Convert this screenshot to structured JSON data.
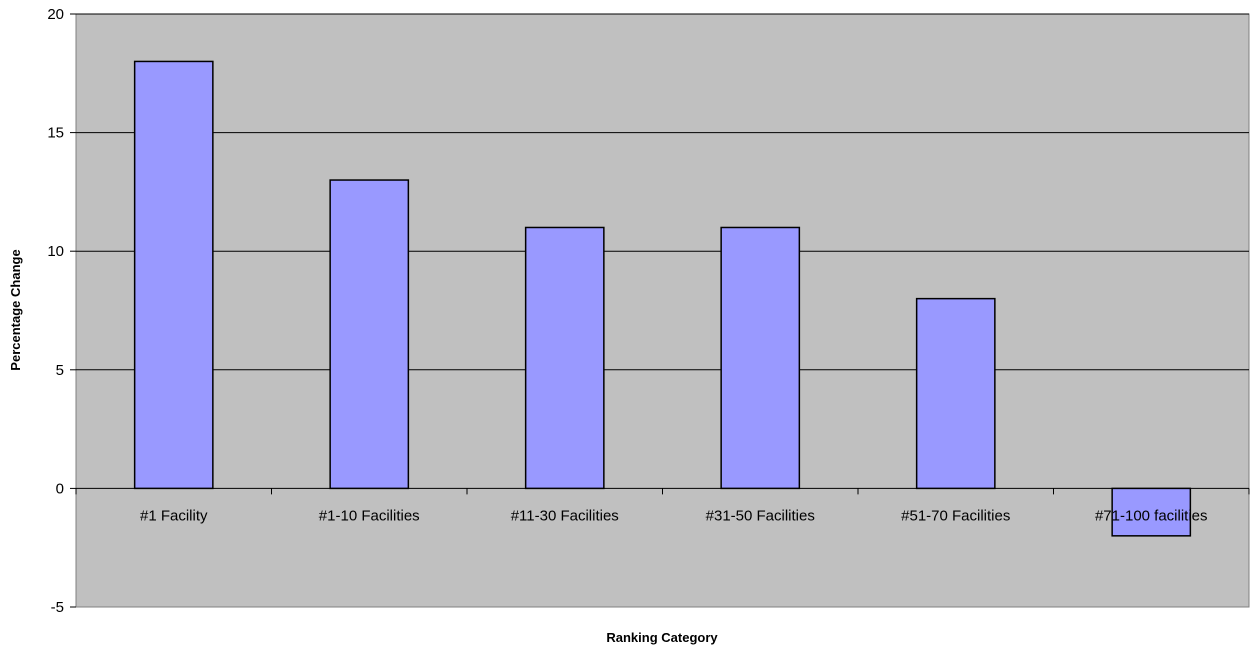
{
  "chart_data": {
    "type": "bar",
    "title": "",
    "xlabel": "Ranking Category",
    "ylabel": "Percentage Change",
    "categories": [
      "#1 Facility",
      "#1-10 Facilities",
      "#11-30 Facilities",
      "#31-50 Facilities",
      "#51-70 Facilities",
      "#71-100 facilities"
    ],
    "values": [
      18,
      13,
      11,
      11,
      8,
      -2
    ],
    "ylim": [
      -5,
      20
    ],
    "yticks": [
      -5,
      0,
      5,
      10,
      15,
      20
    ],
    "grid": true,
    "legend": "none",
    "colors": {
      "plot_background": "#c0c0c0",
      "bar_fill": "#9999ff",
      "bar_stroke": "#000000",
      "gridline": "#000000"
    }
  }
}
